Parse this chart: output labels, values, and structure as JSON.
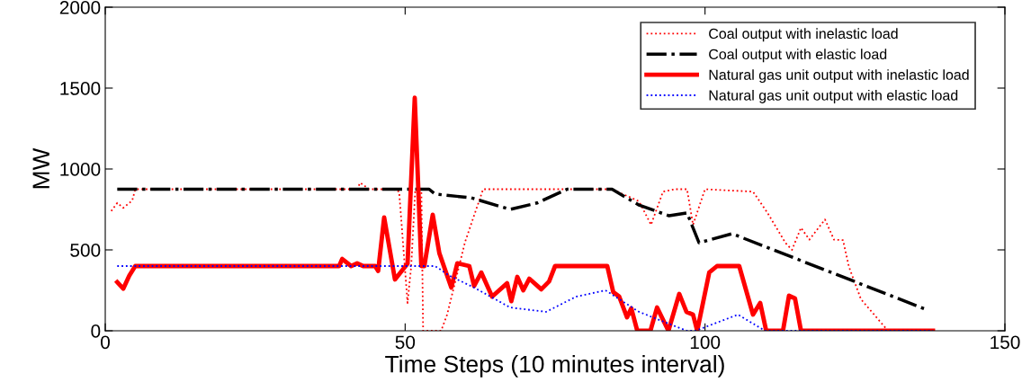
{
  "chart_data": {
    "type": "line",
    "xlabel": "Time Steps (10 minutes interval)",
    "ylabel": "MW",
    "xlim": [
      0,
      150
    ],
    "xticks": [
      0,
      50,
      100,
      150
    ],
    "ylim": [
      0,
      2000
    ],
    "yticks": [
      0,
      500,
      1000,
      1500,
      2000
    ],
    "grid": false,
    "legend": "top right",
    "marker": "none",
    "series": [
      {
        "name": "Coal output with inelastic load",
        "color": "#ff0000",
        "line_style": "dotted",
        "x": [
          1,
          2,
          3,
          4.5,
          5,
          42,
          42.5,
          44,
          48,
          49,
          50.4,
          51,
          51.7,
          52.7,
          53,
          56,
          57,
          60,
          63,
          84.5,
          89,
          91,
          93,
          95,
          97,
          98,
          100,
          108,
          110.4,
          113.4,
          114.5,
          116,
          117.4,
          120,
          121.5,
          123,
          124,
          126,
          130.5,
          137
        ],
        "values": [
          740,
          790,
          760,
          805,
          875,
          875,
          915,
          875,
          875,
          860,
          172,
          394,
          875,
          875,
          0,
          0,
          100,
          550,
          875,
          875,
          800,
          655,
          860,
          875,
          875,
          655,
          875,
          860,
          730,
          544,
          500,
          637,
          563,
          688,
          563,
          560,
          395,
          195,
          0,
          0
        ]
      },
      {
        "name": "Coal output with elastic load",
        "color": "#000000",
        "line_style": "dashdot",
        "x": [
          2,
          54,
          55,
          61,
          67.5,
          72,
          77,
          84.5,
          89,
          94,
          97,
          99,
          104.5,
          137
        ],
        "values": [
          875,
          875,
          845,
          822,
          750,
          790,
          875,
          875,
          777,
          711,
          728,
          544,
          600,
          130
        ]
      },
      {
        "name": "Natural gas unit output with inelastic load",
        "color": "#ff0000",
        "line_style": "solid",
        "x": [
          2,
          3,
          4,
          5,
          39,
          39.5,
          41,
          42,
          43,
          45,
          45.5,
          46.5,
          48.3,
          50.4,
          51.6,
          52.7,
          53.2,
          54.6,
          55.7,
          57.7,
          58.7,
          60.7,
          61.5,
          62.7,
          64.5,
          67,
          67.7,
          68.7,
          69.7,
          70.7,
          72.7,
          74,
          75,
          83.7,
          84.7,
          85.7,
          87,
          87.7,
          88.7,
          90.9,
          92,
          93.9,
          95.7,
          96.9,
          98,
          98.7,
          100.7,
          102,
          105.7,
          108,
          109.2,
          110.2,
          113,
          114,
          115,
          116,
          138
        ],
        "values": [
          300,
          260,
          340,
          400,
          400,
          444,
          400,
          417,
          400,
          400,
          370,
          700,
          317,
          415,
          1440,
          400,
          400,
          717,
          480,
          267,
          417,
          400,
          277,
          360,
          211,
          294,
          183,
          333,
          250,
          322,
          256,
          305,
          400,
          400,
          239,
          211,
          83,
          139,
          0,
          0,
          144,
          0,
          228,
          117,
          100,
          0,
          360,
          400,
          400,
          100,
          172,
          0,
          0,
          217,
          200,
          0,
          0
        ]
      },
      {
        "name": "Natural gas unit output with elastic load",
        "color": "#0000ff",
        "line_style": "dotted",
        "x": [
          2,
          55,
          57.4,
          61.5,
          67.5,
          73.5,
          78.5,
          83.4,
          89,
          95,
          97,
          98.4,
          105.5,
          110,
          138
        ],
        "values": [
          400,
          400,
          340,
          267,
          144,
          117,
          211,
          250,
          117,
          28,
          0,
          0,
          100,
          0,
          0
        ]
      }
    ]
  }
}
